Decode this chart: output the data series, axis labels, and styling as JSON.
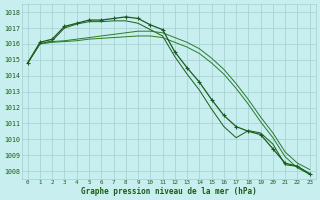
{
  "background_color": "#c8eef0",
  "grid_color": "#9fcfcf",
  "line_color_dark": "#1a5c1a",
  "line_color_med": "#2d7a2d",
  "xlabel": "Graphe pression niveau de la mer (hPa)",
  "ylim": [
    1007.5,
    1018.5
  ],
  "xlim": [
    -0.5,
    23.5
  ],
  "yticks": [
    1008,
    1009,
    1010,
    1011,
    1012,
    1013,
    1014,
    1015,
    1016,
    1017,
    1018
  ],
  "xticks": [
    0,
    1,
    2,
    3,
    4,
    5,
    6,
    7,
    8,
    9,
    10,
    11,
    12,
    13,
    14,
    15,
    16,
    17,
    18,
    19,
    20,
    21,
    22,
    23
  ],
  "series": [
    {
      "y": [
        1014.8,
        1016.1,
        1016.3,
        1017.1,
        1017.3,
        1017.5,
        1017.5,
        1017.6,
        1017.7,
        1017.6,
        1017.2,
        1016.9,
        1015.5,
        1014.5,
        1013.6,
        1012.5,
        1011.5,
        1010.8,
        1010.5,
        1010.3,
        1009.4,
        1008.5,
        1008.3,
        1007.8
      ],
      "color": "#1a5c1a",
      "lw": 0.9,
      "marker": true
    },
    {
      "y": [
        1014.8,
        1016.0,
        1016.2,
        1017.0,
        1017.25,
        1017.4,
        1017.4,
        1017.45,
        1017.45,
        1017.3,
        1016.9,
        1016.5,
        1015.2,
        1014.1,
        1013.1,
        1011.9,
        1010.8,
        1010.1,
        1010.55,
        1010.4,
        1009.7,
        1008.4,
        1008.3,
        1007.85
      ],
      "color": "#1a5c1a",
      "lw": 0.7,
      "marker": false
    },
    {
      "y": [
        1014.8,
        1016.0,
        1016.15,
        1016.2,
        1016.3,
        1016.4,
        1016.5,
        1016.6,
        1016.7,
        1016.8,
        1016.8,
        1016.7,
        1016.4,
        1016.1,
        1015.7,
        1015.1,
        1014.4,
        1013.5,
        1012.5,
        1011.4,
        1010.4,
        1009.2,
        1008.5,
        1008.1
      ],
      "color": "#2d7a2d",
      "lw": 0.7,
      "marker": false
    },
    {
      "y": [
        1014.8,
        1016.0,
        1016.1,
        1016.15,
        1016.2,
        1016.3,
        1016.35,
        1016.4,
        1016.45,
        1016.5,
        1016.5,
        1016.4,
        1016.1,
        1015.8,
        1015.4,
        1014.8,
        1014.1,
        1013.2,
        1012.2,
        1011.1,
        1010.1,
        1008.9,
        1008.2,
        1007.8
      ],
      "color": "#2d7a2d",
      "lw": 0.7,
      "marker": false
    }
  ]
}
